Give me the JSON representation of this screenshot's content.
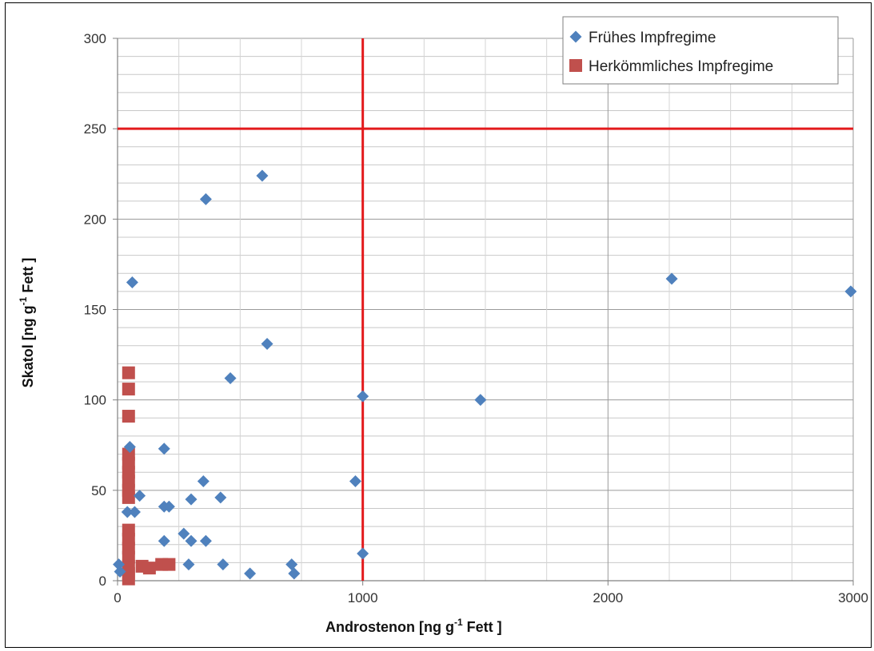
{
  "chart_data": {
    "type": "scatter",
    "xlabel": "Androstenon [ng g",
    "xlabel_sup": "-1",
    "xlabel_end": " Fett ]",
    "ylabel": "Skatol [ng g",
    "ylabel_sup": "-1",
    "ylabel_end": " Fett ]",
    "xlim": [
      0,
      3000
    ],
    "ylim": [
      0,
      300
    ],
    "x_ticks": [
      "0",
      "1000",
      "2000",
      "3000"
    ],
    "y_ticks": [
      "0",
      "50",
      "100",
      "150",
      "200",
      "250",
      "300"
    ],
    "grid": true,
    "legend_position": "top-right",
    "reference_lines": [
      {
        "axis": "x",
        "value": 1000,
        "color": "#e31a1c"
      },
      {
        "axis": "y",
        "value": 250,
        "color": "#e31a1c"
      }
    ],
    "series": [
      {
        "name": "Frühes Impfregime",
        "marker": "diamond",
        "color": "#4f81bd",
        "points": [
          [
            590,
            224
          ],
          [
            360,
            211
          ],
          [
            60,
            165
          ],
          [
            2260,
            167
          ],
          [
            2990,
            160
          ],
          [
            610,
            131
          ],
          [
            460,
            112
          ],
          [
            1000,
            102
          ],
          [
            1480,
            100
          ],
          [
            50,
            74
          ],
          [
            190,
            73
          ],
          [
            350,
            55
          ],
          [
            970,
            55
          ],
          [
            90,
            47
          ],
          [
            420,
            46
          ],
          [
            300,
            45
          ],
          [
            190,
            41
          ],
          [
            210,
            41
          ],
          [
            40,
            38
          ],
          [
            70,
            38
          ],
          [
            270,
            26
          ],
          [
            190,
            22
          ],
          [
            300,
            22
          ],
          [
            360,
            22
          ],
          [
            5,
            9
          ],
          [
            290,
            9
          ],
          [
            430,
            9
          ],
          [
            710,
            9
          ],
          [
            10,
            5
          ],
          [
            540,
            4
          ],
          [
            720,
            4
          ],
          [
            1000,
            15
          ]
        ]
      },
      {
        "name": "Herkömmliches Impfregime",
        "marker": "square",
        "color": "#c0504d",
        "points": [
          [
            45,
            115
          ],
          [
            45,
            106
          ],
          [
            45,
            91
          ],
          [
            45,
            70
          ],
          [
            45,
            65
          ],
          [
            45,
            60
          ],
          [
            45,
            55
          ],
          [
            45,
            50
          ],
          [
            45,
            46
          ],
          [
            45,
            28
          ],
          [
            45,
            23
          ],
          [
            45,
            18
          ],
          [
            45,
            13
          ],
          [
            45,
            8
          ],
          [
            45,
            4
          ],
          [
            45,
            1
          ],
          [
            100,
            8
          ],
          [
            130,
            7
          ],
          [
            180,
            9
          ],
          [
            210,
            9
          ]
        ]
      }
    ]
  }
}
